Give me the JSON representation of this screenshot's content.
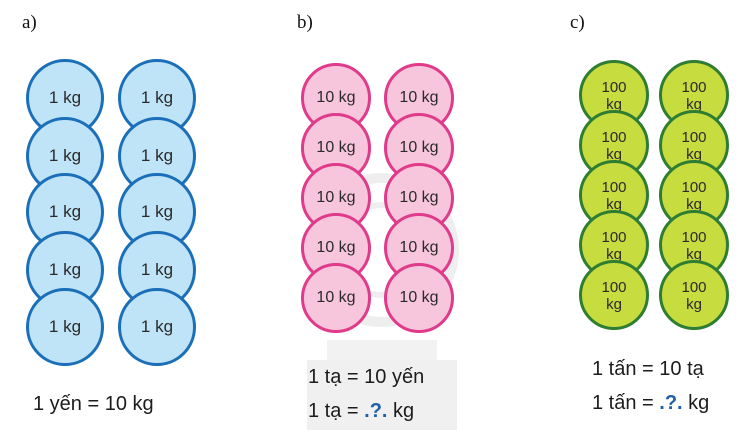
{
  "panels": {
    "a": {
      "label": "a)",
      "coin_text": "1 kg",
      "caption": "1 yến = 10 kg",
      "coin_fill": "#bfe3f7",
      "coin_border": "#1a6fb8"
    },
    "b": {
      "label": "b)",
      "coin_text": "10 kg",
      "caption_line1": "1 tạ = 10 yến",
      "caption_line2_prefix": "1 tạ = ",
      "caption_line2_unknown": ".?.",
      "caption_line2_suffix": " kg",
      "coin_fill": "#f8c6dc",
      "coin_border": "#e03a8a"
    },
    "c": {
      "label": "c)",
      "coin_text_top": "100",
      "coin_text_bottom": "kg",
      "caption_line1": "1 tấn = 10 tạ",
      "caption_line2_prefix": "1 tấn = ",
      "caption_line2_unknown": ".?.",
      "caption_line2_suffix": " kg",
      "coin_fill": "#c7dc3e",
      "coin_border": "#2e7d32"
    }
  }
}
